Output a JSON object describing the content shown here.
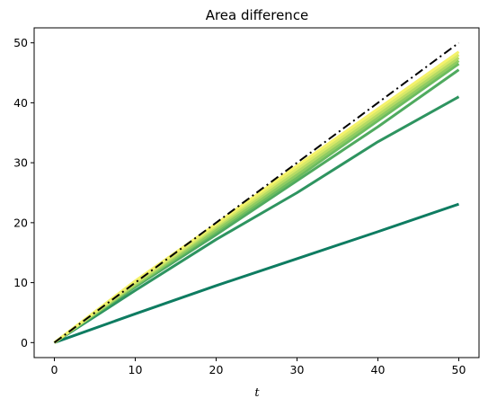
{
  "chart_data": {
    "type": "line",
    "title": "Area difference",
    "xlabel": "t",
    "ylabel": "",
    "xlim": [
      -2.5,
      52.5
    ],
    "ylim": [
      -2.5,
      52.5
    ],
    "x_ticks": [
      0,
      10,
      20,
      30,
      40,
      50
    ],
    "y_ticks": [
      0,
      10,
      20,
      30,
      40,
      50
    ],
    "grid": false,
    "legend": "none",
    "series": [
      {
        "color": "#0e7c61",
        "style": "solid",
        "x": [
          0,
          10,
          20,
          30,
          40,
          50
        ],
        "y": [
          0,
          4.8,
          9.5,
          14.0,
          18.5,
          23.1
        ]
      },
      {
        "color": "#2e9460",
        "style": "solid",
        "x": [
          0,
          10,
          20,
          30,
          40,
          50
        ],
        "y": [
          0,
          8.7,
          17.2,
          25.0,
          33.5,
          41.0
        ]
      },
      {
        "color": "#4faa5f",
        "style": "solid",
        "x": [
          0,
          10,
          20,
          30,
          40,
          50
        ],
        "y": [
          0,
          9.3,
          18.0,
          27.0,
          36.0,
          45.5
        ]
      },
      {
        "color": "#6cbc5f",
        "style": "solid",
        "x": [
          0,
          10,
          20,
          30,
          40,
          50
        ],
        "y": [
          0,
          9.5,
          18.5,
          27.5,
          37.0,
          46.5
        ]
      },
      {
        "color": "#8ecb62",
        "style": "solid",
        "x": [
          0,
          10,
          20,
          30,
          40,
          50
        ],
        "y": [
          0,
          9.6,
          18.8,
          28.0,
          37.5,
          47.0
        ]
      },
      {
        "color": "#b4da64",
        "style": "solid",
        "x": [
          0,
          10,
          20,
          30,
          40,
          50
        ],
        "y": [
          0,
          9.8,
          19.2,
          28.5,
          38.0,
          47.5
        ]
      },
      {
        "color": "#d7e868",
        "style": "solid",
        "x": [
          0,
          10,
          20,
          30,
          40,
          50
        ],
        "y": [
          0,
          10.0,
          19.5,
          29.0,
          38.5,
          48.0
        ]
      },
      {
        "color": "#f4f26b",
        "style": "solid",
        "x": [
          0,
          10,
          20,
          30,
          40,
          50
        ],
        "y": [
          0,
          10.3,
          19.8,
          29.5,
          39.0,
          48.5
        ]
      },
      {
        "color": "#000000",
        "style": "dashdot",
        "x": [
          0,
          50
        ],
        "y": [
          0,
          50
        ]
      }
    ]
  }
}
